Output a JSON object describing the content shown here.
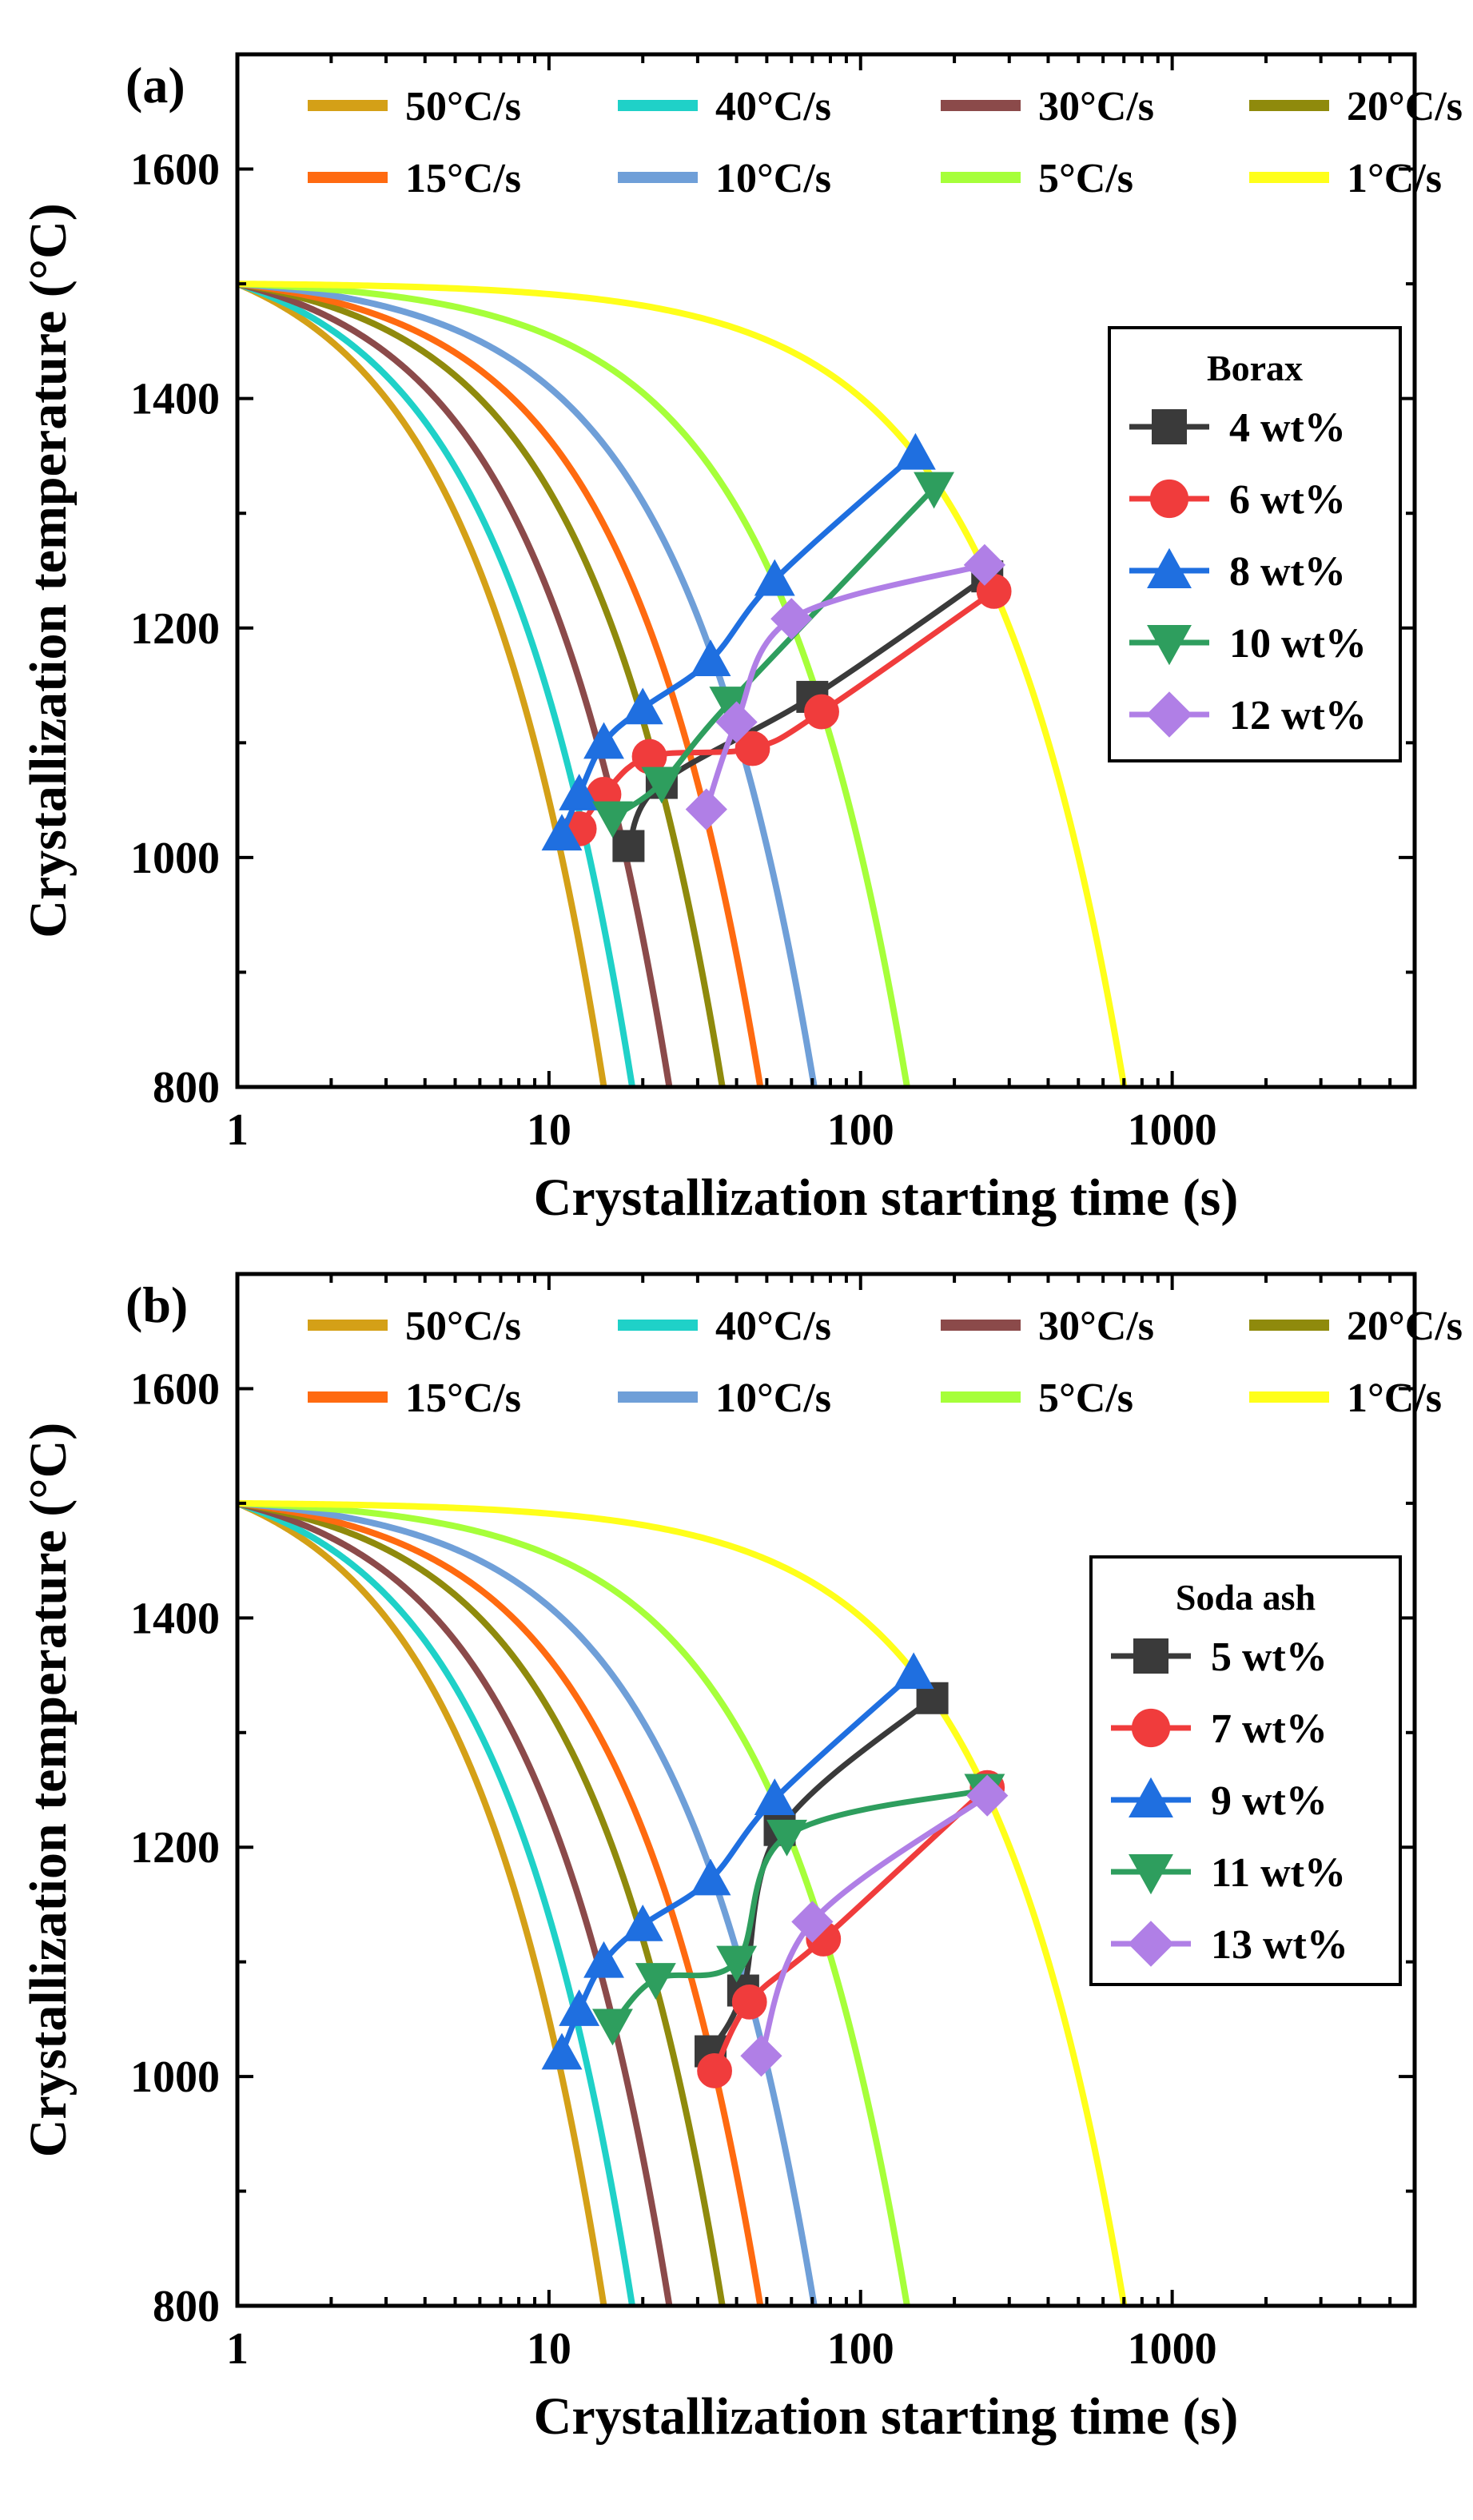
{
  "chart_data": [
    {
      "type": "line",
      "panel_label": "(a)",
      "xlabel": "Crystallization starting time (s)",
      "ylabel": "Crystallization temperature (°C)",
      "xscale": "log",
      "xlim": [
        1,
        6000
      ],
      "ylim": [
        800,
        1700
      ],
      "xticks": [
        "1",
        "10",
        "100",
        "1000"
      ],
      "yticks": [
        "800",
        "1000",
        "1200",
        "1400",
        "1600"
      ],
      "grid": false,
      "cooling_legend_placement": "top",
      "composition_legend_placement": "right",
      "cooling_curves": [
        {
          "name": "50°C/s",
          "rate": 50,
          "color": "#d4a017"
        },
        {
          "name": "40°C/s",
          "rate": 40,
          "color": "#1fd1c8"
        },
        {
          "name": "30°C/s",
          "rate": 30,
          "color": "#8b4a4a"
        },
        {
          "name": "20°C/s",
          "rate": 20,
          "color": "#8f8a0c"
        },
        {
          "name": "15°C/s",
          "rate": 15,
          "color": "#ff6a10"
        },
        {
          "name": "10°C/s",
          "rate": 10,
          "color": "#6f9fd8"
        },
        {
          "name": "5°C/s",
          "rate": 5,
          "color": "#a6ff3a"
        },
        {
          "name": "1°C/s",
          "rate": 1,
          "color": "#ffff1a"
        }
      ],
      "cooling_curve_model": {
        "start_temperature": 1500,
        "start_time": 1
      },
      "legend_title": "Borax",
      "series": [
        {
          "name": "4 wt%",
          "color": "#3a3a3a",
          "marker": "square",
          "x": [
            18,
            23,
            70,
            255
          ],
          "y": [
            1010,
            1065,
            1140,
            1245
          ]
        },
        {
          "name": "6 wt%",
          "color": "#f03c3c",
          "marker": "circle",
          "x": [
            12.5,
            15,
            21,
            45,
            75,
            268
          ],
          "y": [
            1025,
            1055,
            1088,
            1095,
            1127,
            1232
          ]
        },
        {
          "name": "8 wt%",
          "color": "#1f6fe0",
          "marker": "triangle-up",
          "x": [
            11,
            12.5,
            15,
            20,
            33,
            53,
            150
          ],
          "y": [
            1020,
            1055,
            1100,
            1130,
            1172,
            1242,
            1352
          ]
        },
        {
          "name": "10 wt%",
          "color": "#2e9e5e",
          "marker": "triangle-down",
          "x": [
            16,
            23,
            38,
            172
          ],
          "y": [
            1035,
            1065,
            1135,
            1322
          ]
        },
        {
          "name": "12 wt%",
          "color": "#b07fe6",
          "marker": "diamond",
          "x": [
            32,
            40,
            60,
            250
          ],
          "y": [
            1042,
            1118,
            1208,
            1255
          ]
        }
      ]
    },
    {
      "type": "line",
      "panel_label": "(b)",
      "xlabel": "Crystallization starting time (s)",
      "ylabel": "Crystallization temperature (°C)",
      "xscale": "log",
      "xlim": [
        1,
        6000
      ],
      "ylim": [
        800,
        1700
      ],
      "xticks": [
        "1",
        "10",
        "100",
        "1000"
      ],
      "yticks": [
        "800",
        "1000",
        "1200",
        "1400",
        "1600"
      ],
      "grid": false,
      "cooling_legend_placement": "top",
      "composition_legend_placement": "right",
      "cooling_curves": [
        {
          "name": "50°C/s",
          "rate": 50,
          "color": "#d4a017"
        },
        {
          "name": "40°C/s",
          "rate": 40,
          "color": "#1fd1c8"
        },
        {
          "name": "30°C/s",
          "rate": 30,
          "color": "#8b4a4a"
        },
        {
          "name": "20°C/s",
          "rate": 20,
          "color": "#8f8a0c"
        },
        {
          "name": "15°C/s",
          "rate": 15,
          "color": "#ff6a10"
        },
        {
          "name": "10°C/s",
          "rate": 10,
          "color": "#6f9fd8"
        },
        {
          "name": "5°C/s",
          "rate": 5,
          "color": "#a6ff3a"
        },
        {
          "name": "1°C/s",
          "rate": 1,
          "color": "#ffff1a"
        }
      ],
      "cooling_curve_model": {
        "start_temperature": 1500,
        "start_time": 1
      },
      "legend_title": "Soda ash",
      "series": [
        {
          "name": "5 wt%",
          "color": "#3a3a3a",
          "marker": "square",
          "x": [
            33,
            42,
            55,
            170
          ],
          "y": [
            1022,
            1075,
            1215,
            1330
          ]
        },
        {
          "name": "7 wt%",
          "color": "#f03c3c",
          "marker": "circle",
          "x": [
            34,
            44,
            76,
            255
          ],
          "y": [
            1005,
            1065,
            1120,
            1252
          ]
        },
        {
          "name": "9 wt%",
          "color": "#1f6fe0",
          "marker": "triangle-up",
          "x": [
            11,
            12.5,
            15,
            20,
            33,
            53,
            148
          ],
          "y": [
            1020,
            1058,
            1100,
            1132,
            1172,
            1242,
            1352
          ]
        },
        {
          "name": "11 wt%",
          "color": "#2e9e5e",
          "marker": "triangle-down",
          "x": [
            16,
            22,
            40,
            58,
            250
          ],
          "y": [
            1045,
            1085,
            1100,
            1210,
            1250
          ]
        },
        {
          "name": "13 wt%",
          "color": "#b07fe6",
          "marker": "diamond",
          "x": [
            48,
            70,
            255
          ],
          "y": [
            1018,
            1135,
            1245
          ]
        }
      ]
    }
  ]
}
